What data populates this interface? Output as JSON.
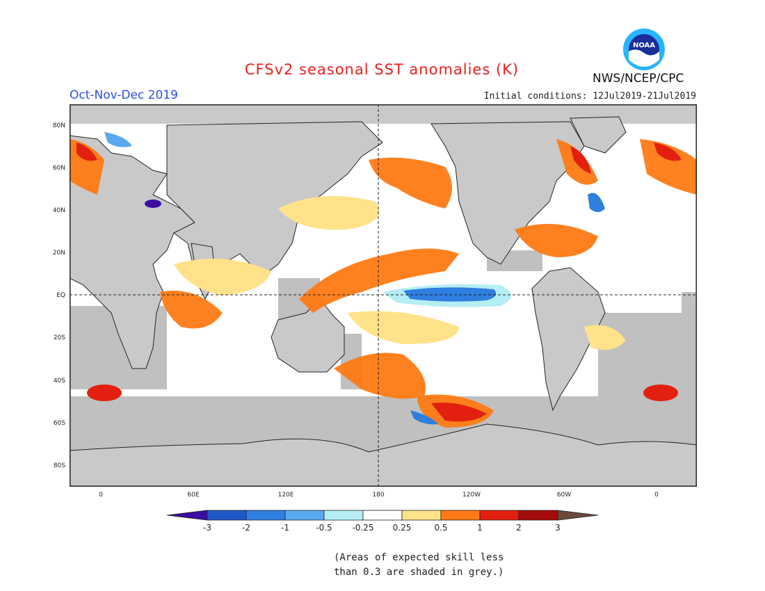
{
  "header": {
    "title": "CFSv2 seasonal SST anomalies (K)",
    "season": "Oct-Nov-Dec 2019",
    "initial_conditions": "Initial conditions: 12Jul2019-21Jul2019",
    "agency": "NWS/NCEP/CPC",
    "logo_text": "NOAA"
  },
  "axes": {
    "lat_labels": [
      "80N",
      "60N",
      "40N",
      "20N",
      "EQ",
      "20S",
      "40S",
      "60S",
      "80S"
    ],
    "lon_labels": [
      "0",
      "60E",
      "120E",
      "180",
      "120W",
      "60W",
      "0"
    ]
  },
  "colorbar": {
    "labels": [
      "-3",
      "-2",
      "-1",
      "-0.5",
      "-0.25",
      "0.25",
      "0.5",
      "1",
      "2",
      "3"
    ],
    "colors": [
      "#3b0da3",
      "#1f58c9",
      "#2f7fe0",
      "#5aa9f0",
      "#b5eef5",
      "#ffffff",
      "#ffe28a",
      "#ff7a14",
      "#e3200f",
      "#a50b0b",
      "#6b4a3a"
    ]
  },
  "note": {
    "line1": "(Areas of expected skill less",
    "line2": "than 0.3 are shaded in grey.)"
  },
  "colors": {
    "land": "#c9c9c9",
    "grey_skill": "#c0c0c0",
    "title": "#e8201c",
    "season": "#2b4fe0"
  }
}
